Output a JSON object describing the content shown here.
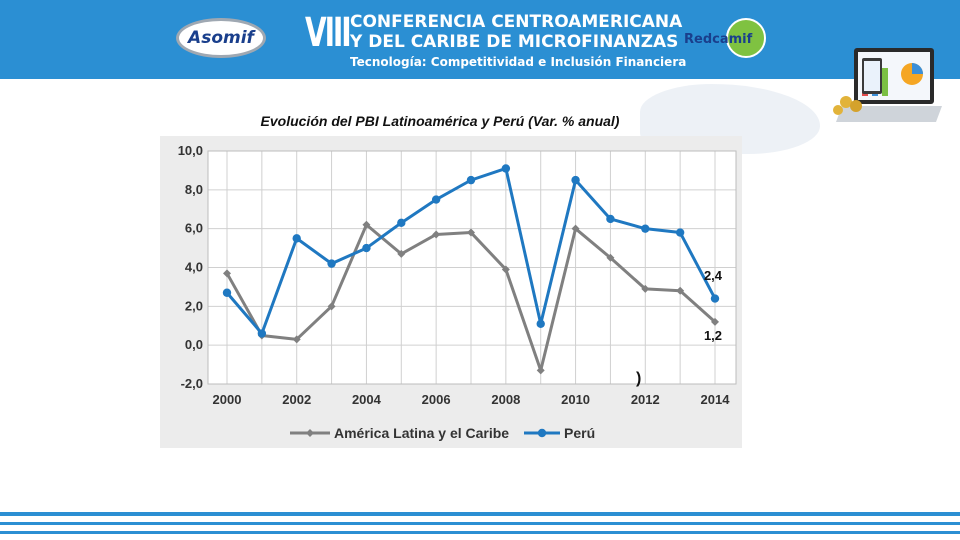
{
  "header": {
    "asomif_logo": "Asomif",
    "roman_numeral": "VIII",
    "conference_line1": "CONFERENCIA CENTROAMERICANA",
    "conference_line2": "Y DEL CARIBE DE MICROFINANZAS",
    "subtitle": "Tecnología: Competitividad e Inclusión Financiera",
    "redcamif_logo": "Redcamif"
  },
  "colors": {
    "banner": "#2b8fd3",
    "peru_series": "#1f78c1",
    "latam_series": "#808080",
    "chart_background": "#ececec"
  },
  "chart_data": {
    "type": "line",
    "title": "Evolución del PBI Latinoamérica y Perú (Var. % anual)",
    "xlabel": "",
    "ylabel": "",
    "x": [
      2000,
      2001,
      2002,
      2003,
      2004,
      2005,
      2006,
      2007,
      2008,
      2009,
      2010,
      2011,
      2012,
      2013,
      2014
    ],
    "x_tick_labels": [
      "2000",
      "2002",
      "2004",
      "2006",
      "2008",
      "2010",
      "2012",
      "2014"
    ],
    "y_tick_labels": [
      "-2,0",
      "0,0",
      "2,0",
      "4,0",
      "6,0",
      "8,0",
      "10,0"
    ],
    "ylim": [
      -2,
      10
    ],
    "grid": true,
    "legend_position": "bottom",
    "series": [
      {
        "name": "América Latina y el Caribe",
        "values": [
          3.7,
          0.5,
          0.3,
          2.0,
          6.2,
          4.7,
          5.7,
          5.8,
          3.9,
          -1.3,
          6.0,
          4.5,
          2.9,
          2.8,
          1.2
        ]
      },
      {
        "name": "Perú",
        "values": [
          2.7,
          0.6,
          5.5,
          4.2,
          5.0,
          6.3,
          7.5,
          8.5,
          9.1,
          1.1,
          8.5,
          6.5,
          6.0,
          5.8,
          2.4
        ]
      }
    ],
    "annotations": [
      "2,4",
      "1,2",
      ")"
    ]
  }
}
